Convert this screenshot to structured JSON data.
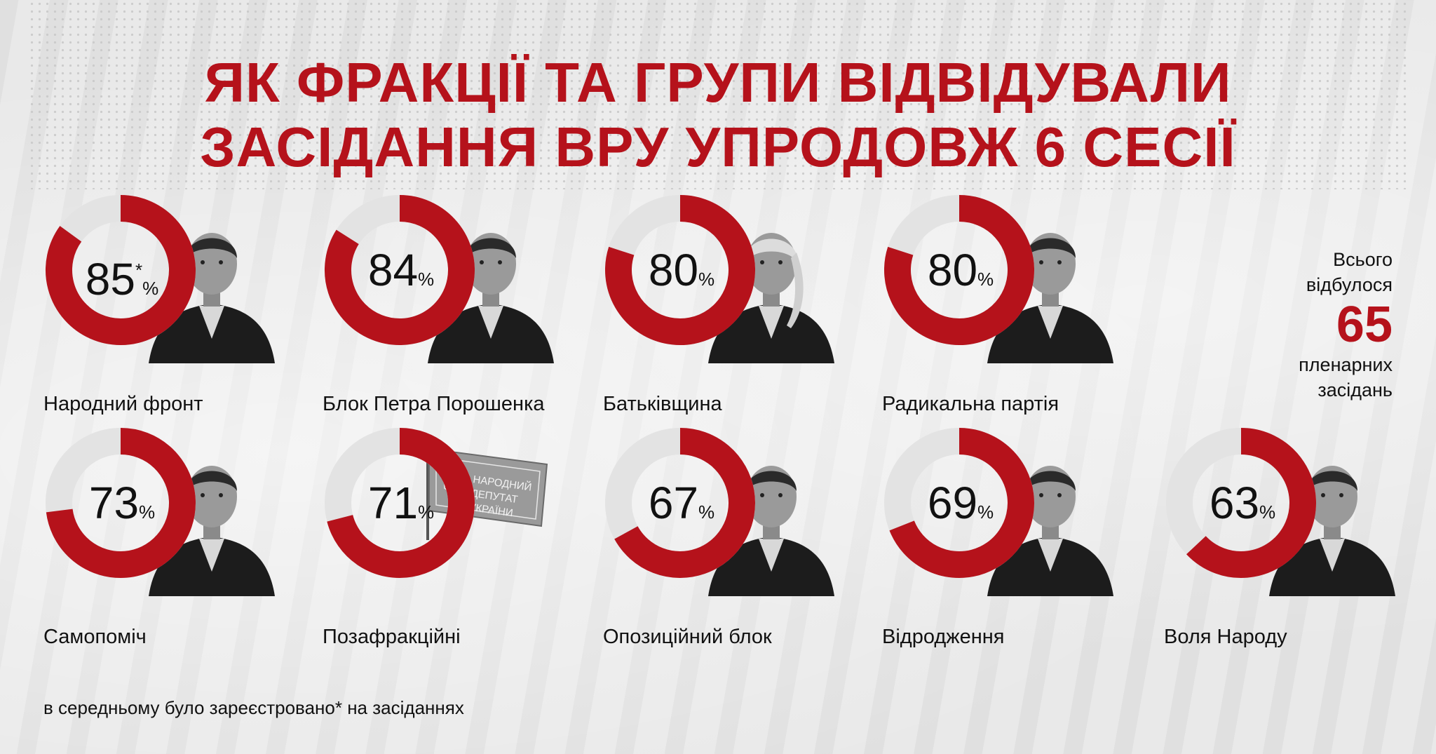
{
  "title": {
    "line1": "ЯК ФРАКЦІЇ ТА ГРУПИ ВІДВІДУВАЛИ",
    "line2": "ЗАСІДАННЯ ВРУ УПРОДОВЖ 6 СЕСІЇ"
  },
  "colors": {
    "accent": "#b5121b",
    "ring_track": "#e3e3e3",
    "text": "#111111"
  },
  "total": {
    "line1": "Всього",
    "line2": "відбулося",
    "value": "65",
    "line3": "пленарних",
    "line4": "засідань"
  },
  "footnote": "в середньому було зареєстровано* на засіданнях",
  "chart_data": {
    "type": "donut",
    "unit": "%",
    "items": [
      {
        "name": "Народний фронт",
        "value": 85,
        "value_text": "85",
        "mark": "*",
        "portrait": "portrait-man"
      },
      {
        "name": "Блок Петра Порошенка",
        "value": 84,
        "value_text": "84",
        "portrait": "portrait-man"
      },
      {
        "name": "Батьківщина",
        "value": 80,
        "value_text": "80",
        "portrait": "portrait-woman"
      },
      {
        "name": "Радикальна партія",
        "value": 80,
        "value_text": "80",
        "portrait": "portrait-man"
      },
      {
        "name": "Самопоміч",
        "value": 73,
        "value_text": "73",
        "portrait": "portrait-man"
      },
      {
        "name": "Позафракційні",
        "value": 71,
        "value_text": "71",
        "portrait": "deputy-badge-icon",
        "badge_text": [
          "НАРОДНИЙ",
          "ДЕПУТАТ",
          "УКРАЇНИ"
        ]
      },
      {
        "name": "Опозиційний блок",
        "value": 67,
        "value_text": "67",
        "portrait": "portrait-man"
      },
      {
        "name": "Відродження",
        "value": 69,
        "value_text": "69",
        "portrait": "portrait-man"
      },
      {
        "name": "Воля Народу",
        "value": 63,
        "value_text": "63",
        "portrait": "portrait-man"
      }
    ]
  }
}
